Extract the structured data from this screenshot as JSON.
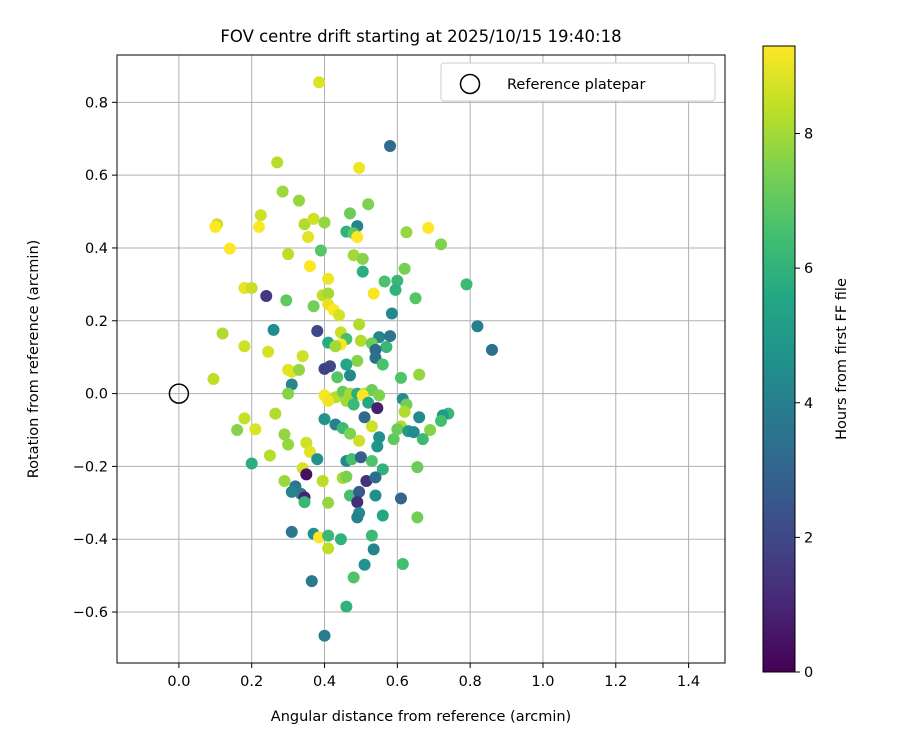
{
  "chart_data": {
    "type": "scatter",
    "title": "FOV centre drift starting at 2025/10/15 19:40:18",
    "xlabel": "Angular distance from reference (arcmin)",
    "ylabel": "Rotation from reference (arcmin)",
    "xlim": [
      -0.17,
      1.5
    ],
    "ylim": [
      -0.74,
      0.93
    ],
    "xticks": [
      0.0,
      0.2,
      0.4,
      0.6,
      0.8,
      1.0,
      1.2,
      1.4
    ],
    "yticks": [
      -0.6,
      -0.4,
      -0.2,
      0.0,
      0.2,
      0.4,
      0.6,
      0.8
    ],
    "xtick_labels": [
      "0.0",
      "0.2",
      "0.4",
      "0.6",
      "0.8",
      "1.0",
      "1.2",
      "1.4"
    ],
    "ytick_labels": [
      "−0.6",
      "−0.4",
      "−0.2",
      "0.0",
      "0.2",
      "0.4",
      "0.6",
      "0.8"
    ],
    "grid": true,
    "legend": {
      "location": "top-right",
      "entries": [
        {
          "label": "Reference platepar",
          "marker": "open-circle"
        }
      ]
    },
    "reference_point": {
      "x": 0.0,
      "y": 0.0
    },
    "colorbar": {
      "label": "Hours from first FF file",
      "min": 0,
      "max": 9.3,
      "ticks": [
        0,
        2,
        4,
        6,
        8
      ],
      "tick_labels": [
        "0",
        "2",
        "4",
        "6",
        "8"
      ],
      "colormap": "viridis"
    },
    "points": [
      {
        "x": 0.385,
        "y": 0.855,
        "h": 8.8
      },
      {
        "x": 0.58,
        "y": 0.68,
        "h": 3.2
      },
      {
        "x": 0.495,
        "y": 0.62,
        "h": 9.1
      },
      {
        "x": 0.27,
        "y": 0.635,
        "h": 8.3
      },
      {
        "x": 0.285,
        "y": 0.555,
        "h": 7.9
      },
      {
        "x": 0.33,
        "y": 0.53,
        "h": 7.8
      },
      {
        "x": 0.52,
        "y": 0.52,
        "h": 7.5
      },
      {
        "x": 0.225,
        "y": 0.49,
        "h": 8.6
      },
      {
        "x": 0.47,
        "y": 0.495,
        "h": 7.2
      },
      {
        "x": 0.105,
        "y": 0.465,
        "h": 8.5
      },
      {
        "x": 0.1,
        "y": 0.458,
        "h": 9.3
      },
      {
        "x": 0.22,
        "y": 0.458,
        "h": 9.3
      },
      {
        "x": 0.345,
        "y": 0.465,
        "h": 8.2
      },
      {
        "x": 0.37,
        "y": 0.48,
        "h": 8.6
      },
      {
        "x": 0.4,
        "y": 0.47,
        "h": 7.8
      },
      {
        "x": 0.49,
        "y": 0.46,
        "h": 4.2
      },
      {
        "x": 0.46,
        "y": 0.445,
        "h": 6.0
      },
      {
        "x": 0.48,
        "y": 0.44,
        "h": 7.0
      },
      {
        "x": 0.625,
        "y": 0.443,
        "h": 7.8
      },
      {
        "x": 0.685,
        "y": 0.455,
        "h": 9.3
      },
      {
        "x": 0.72,
        "y": 0.41,
        "h": 7.5
      },
      {
        "x": 0.49,
        "y": 0.43,
        "h": 9.3
      },
      {
        "x": 0.355,
        "y": 0.43,
        "h": 8.9
      },
      {
        "x": 0.14,
        "y": 0.398,
        "h": 9.3
      },
      {
        "x": 0.39,
        "y": 0.393,
        "h": 6.8
      },
      {
        "x": 0.3,
        "y": 0.383,
        "h": 8.4
      },
      {
        "x": 0.48,
        "y": 0.38,
        "h": 8.0
      },
      {
        "x": 0.505,
        "y": 0.37,
        "h": 7.6
      },
      {
        "x": 0.36,
        "y": 0.35,
        "h": 9.3
      },
      {
        "x": 0.505,
        "y": 0.335,
        "h": 5.8
      },
      {
        "x": 0.62,
        "y": 0.343,
        "h": 7.4
      },
      {
        "x": 0.565,
        "y": 0.308,
        "h": 6.6
      },
      {
        "x": 0.6,
        "y": 0.31,
        "h": 6.2
      },
      {
        "x": 0.41,
        "y": 0.315,
        "h": 9.1
      },
      {
        "x": 0.79,
        "y": 0.3,
        "h": 6.3
      },
      {
        "x": 0.18,
        "y": 0.29,
        "h": 9.0
      },
      {
        "x": 0.2,
        "y": 0.29,
        "h": 8.5
      },
      {
        "x": 0.595,
        "y": 0.285,
        "h": 6.0
      },
      {
        "x": 0.535,
        "y": 0.275,
        "h": 9.2
      },
      {
        "x": 0.395,
        "y": 0.27,
        "h": 8.4
      },
      {
        "x": 0.41,
        "y": 0.275,
        "h": 8.0
      },
      {
        "x": 0.24,
        "y": 0.268,
        "h": 1.5
      },
      {
        "x": 0.295,
        "y": 0.256,
        "h": 7.0
      },
      {
        "x": 0.65,
        "y": 0.262,
        "h": 6.8
      },
      {
        "x": 0.37,
        "y": 0.24,
        "h": 7.3
      },
      {
        "x": 0.41,
        "y": 0.245,
        "h": 9.0
      },
      {
        "x": 0.425,
        "y": 0.23,
        "h": 9.3
      },
      {
        "x": 0.44,
        "y": 0.215,
        "h": 8.7
      },
      {
        "x": 0.585,
        "y": 0.22,
        "h": 4.3
      },
      {
        "x": 0.82,
        "y": 0.185,
        "h": 4.0
      },
      {
        "x": 0.495,
        "y": 0.19,
        "h": 8.2
      },
      {
        "x": 0.26,
        "y": 0.175,
        "h": 4.5
      },
      {
        "x": 0.38,
        "y": 0.172,
        "h": 2.0
      },
      {
        "x": 0.12,
        "y": 0.165,
        "h": 8.2
      },
      {
        "x": 0.445,
        "y": 0.168,
        "h": 8.5
      },
      {
        "x": 0.46,
        "y": 0.15,
        "h": 6.5
      },
      {
        "x": 0.55,
        "y": 0.155,
        "h": 4.2
      },
      {
        "x": 0.58,
        "y": 0.158,
        "h": 3.6
      },
      {
        "x": 0.41,
        "y": 0.14,
        "h": 5.7
      },
      {
        "x": 0.445,
        "y": 0.135,
        "h": 9.3
      },
      {
        "x": 0.5,
        "y": 0.145,
        "h": 8.2
      },
      {
        "x": 0.43,
        "y": 0.13,
        "h": 8.0
      },
      {
        "x": 0.53,
        "y": 0.138,
        "h": 7.2
      },
      {
        "x": 0.18,
        "y": 0.13,
        "h": 8.6
      },
      {
        "x": 0.57,
        "y": 0.128,
        "h": 6.2
      },
      {
        "x": 0.54,
        "y": 0.12,
        "h": 3.2
      },
      {
        "x": 0.86,
        "y": 0.12,
        "h": 3.4
      },
      {
        "x": 0.245,
        "y": 0.115,
        "h": 8.7
      },
      {
        "x": 0.34,
        "y": 0.103,
        "h": 8.6
      },
      {
        "x": 0.54,
        "y": 0.098,
        "h": 3.4
      },
      {
        "x": 0.49,
        "y": 0.09,
        "h": 7.6
      },
      {
        "x": 0.56,
        "y": 0.08,
        "h": 6.6
      },
      {
        "x": 0.46,
        "y": 0.08,
        "h": 5.5
      },
      {
        "x": 0.415,
        "y": 0.075,
        "h": 2.0
      },
      {
        "x": 0.4,
        "y": 0.068,
        "h": 1.8
      },
      {
        "x": 0.31,
        "y": 0.06,
        "h": 9.0
      },
      {
        "x": 0.3,
        "y": 0.065,
        "h": 8.9
      },
      {
        "x": 0.33,
        "y": 0.065,
        "h": 7.8
      },
      {
        "x": 0.095,
        "y": 0.04,
        "h": 8.4
      },
      {
        "x": 0.435,
        "y": 0.045,
        "h": 6.8
      },
      {
        "x": 0.47,
        "y": 0.05,
        "h": 4.3
      },
      {
        "x": 0.61,
        "y": 0.043,
        "h": 6.7
      },
      {
        "x": 0.66,
        "y": 0.052,
        "h": 7.8
      },
      {
        "x": 0.31,
        "y": 0.025,
        "h": 4.3
      },
      {
        "x": 0.3,
        "y": 0.0,
        "h": 7.6
      },
      {
        "x": 0.4,
        "y": -0.005,
        "h": 9.2
      },
      {
        "x": 0.43,
        "y": -0.01,
        "h": 8.3
      },
      {
        "x": 0.45,
        "y": 0.005,
        "h": 7.1
      },
      {
        "x": 0.47,
        "y": 0.0,
        "h": 8.0
      },
      {
        "x": 0.49,
        "y": 0.0,
        "h": 5.8
      },
      {
        "x": 0.51,
        "y": 0.0,
        "h": 8.4
      },
      {
        "x": 0.53,
        "y": 0.01,
        "h": 7.2
      },
      {
        "x": 0.55,
        "y": -0.005,
        "h": 7.5
      },
      {
        "x": 0.505,
        "y": -0.005,
        "h": 9.3
      },
      {
        "x": 0.41,
        "y": -0.02,
        "h": 9.1
      },
      {
        "x": 0.46,
        "y": -0.02,
        "h": 8.0
      },
      {
        "x": 0.48,
        "y": -0.03,
        "h": 6.3
      },
      {
        "x": 0.52,
        "y": -0.025,
        "h": 5.6
      },
      {
        "x": 0.545,
        "y": -0.04,
        "h": 0.8
      },
      {
        "x": 0.615,
        "y": -0.015,
        "h": 4.6
      },
      {
        "x": 0.625,
        "y": -0.03,
        "h": 7.3
      },
      {
        "x": 0.62,
        "y": -0.05,
        "h": 8.2
      },
      {
        "x": 0.74,
        "y": -0.055,
        "h": 6.2
      },
      {
        "x": 0.725,
        "y": -0.06,
        "h": 5.0
      },
      {
        "x": 0.265,
        "y": -0.055,
        "h": 8.2
      },
      {
        "x": 0.18,
        "y": -0.068,
        "h": 8.5
      },
      {
        "x": 0.4,
        "y": -0.07,
        "h": 4.8
      },
      {
        "x": 0.51,
        "y": -0.065,
        "h": 3.2
      },
      {
        "x": 0.66,
        "y": -0.065,
        "h": 4.4
      },
      {
        "x": 0.72,
        "y": -0.075,
        "h": 6.5
      },
      {
        "x": 0.43,
        "y": -0.085,
        "h": 4.1
      },
      {
        "x": 0.61,
        "y": -0.09,
        "h": 8.2
      },
      {
        "x": 0.45,
        "y": -0.095,
        "h": 6.3
      },
      {
        "x": 0.53,
        "y": -0.09,
        "h": 8.6
      },
      {
        "x": 0.6,
        "y": -0.098,
        "h": 7.2
      },
      {
        "x": 0.63,
        "y": -0.103,
        "h": 5.0
      },
      {
        "x": 0.645,
        "y": -0.106,
        "h": 4.5
      },
      {
        "x": 0.69,
        "y": -0.1,
        "h": 7.6
      },
      {
        "x": 0.16,
        "y": -0.1,
        "h": 7.6
      },
      {
        "x": 0.21,
        "y": -0.098,
        "h": 8.8
      },
      {
        "x": 0.29,
        "y": -0.112,
        "h": 7.8
      },
      {
        "x": 0.47,
        "y": -0.11,
        "h": 7.5
      },
      {
        "x": 0.55,
        "y": -0.12,
        "h": 4.6
      },
      {
        "x": 0.59,
        "y": -0.125,
        "h": 7.0
      },
      {
        "x": 0.67,
        "y": -0.125,
        "h": 6.3
      },
      {
        "x": 0.495,
        "y": -0.13,
        "h": 8.6
      },
      {
        "x": 0.3,
        "y": -0.14,
        "h": 7.8
      },
      {
        "x": 0.35,
        "y": -0.135,
        "h": 8.6
      },
      {
        "x": 0.545,
        "y": -0.145,
        "h": 4.8
      },
      {
        "x": 0.36,
        "y": -0.16,
        "h": 8.9
      },
      {
        "x": 0.25,
        "y": -0.17,
        "h": 8.3
      },
      {
        "x": 0.38,
        "y": -0.18,
        "h": 4.7
      },
      {
        "x": 0.46,
        "y": -0.185,
        "h": 4.4
      },
      {
        "x": 0.475,
        "y": -0.18,
        "h": 6.5
      },
      {
        "x": 0.5,
        "y": -0.175,
        "h": 2.8
      },
      {
        "x": 0.53,
        "y": -0.185,
        "h": 6.7
      },
      {
        "x": 0.2,
        "y": -0.192,
        "h": 5.8
      },
      {
        "x": 0.34,
        "y": -0.205,
        "h": 8.7
      },
      {
        "x": 0.56,
        "y": -0.208,
        "h": 6.0
      },
      {
        "x": 0.655,
        "y": -0.202,
        "h": 7.2
      },
      {
        "x": 0.35,
        "y": -0.222,
        "h": 0.4
      },
      {
        "x": 0.45,
        "y": -0.232,
        "h": 8.1
      },
      {
        "x": 0.46,
        "y": -0.228,
        "h": 7.4
      },
      {
        "x": 0.515,
        "y": -0.24,
        "h": 1.4
      },
      {
        "x": 0.54,
        "y": -0.23,
        "h": 3.3
      },
      {
        "x": 0.29,
        "y": -0.24,
        "h": 7.9
      },
      {
        "x": 0.395,
        "y": -0.24,
        "h": 8.3
      },
      {
        "x": 0.32,
        "y": -0.255,
        "h": 3.6
      },
      {
        "x": 0.31,
        "y": -0.27,
        "h": 4.2
      },
      {
        "x": 0.335,
        "y": -0.275,
        "h": 3.9
      },
      {
        "x": 0.47,
        "y": -0.28,
        "h": 6.5
      },
      {
        "x": 0.495,
        "y": -0.27,
        "h": 2.7
      },
      {
        "x": 0.54,
        "y": -0.28,
        "h": 4.6
      },
      {
        "x": 0.345,
        "y": -0.285,
        "h": 0.9
      },
      {
        "x": 0.49,
        "y": -0.298,
        "h": 1.2
      },
      {
        "x": 0.61,
        "y": -0.288,
        "h": 3.0
      },
      {
        "x": 0.345,
        "y": -0.298,
        "h": 6.2
      },
      {
        "x": 0.41,
        "y": -0.3,
        "h": 7.8
      },
      {
        "x": 0.495,
        "y": -0.328,
        "h": 4.4
      },
      {
        "x": 0.49,
        "y": -0.34,
        "h": 4.0
      },
      {
        "x": 0.56,
        "y": -0.335,
        "h": 5.6
      },
      {
        "x": 0.655,
        "y": -0.34,
        "h": 7.3
      },
      {
        "x": 0.31,
        "y": -0.38,
        "h": 3.7
      },
      {
        "x": 0.37,
        "y": -0.385,
        "h": 4.6
      },
      {
        "x": 0.385,
        "y": -0.395,
        "h": 9.3
      },
      {
        "x": 0.41,
        "y": -0.39,
        "h": 6.2
      },
      {
        "x": 0.445,
        "y": -0.4,
        "h": 6.0
      },
      {
        "x": 0.53,
        "y": -0.39,
        "h": 6.3
      },
      {
        "x": 0.41,
        "y": -0.425,
        "h": 8.4
      },
      {
        "x": 0.535,
        "y": -0.428,
        "h": 4.2
      },
      {
        "x": 0.51,
        "y": -0.47,
        "h": 4.7
      },
      {
        "x": 0.615,
        "y": -0.468,
        "h": 6.5
      },
      {
        "x": 0.48,
        "y": -0.505,
        "h": 6.7
      },
      {
        "x": 0.365,
        "y": -0.515,
        "h": 3.8
      },
      {
        "x": 0.46,
        "y": -0.585,
        "h": 6.0
      },
      {
        "x": 0.4,
        "y": -0.665,
        "h": 3.9
      }
    ]
  }
}
